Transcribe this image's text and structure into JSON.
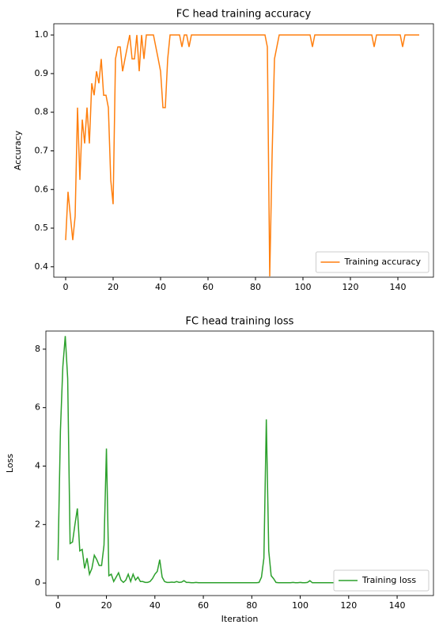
{
  "chart_data": [
    {
      "type": "line",
      "title": "FC head training accuracy",
      "ylabel": "Accuracy",
      "x": [
        0,
        1,
        2,
        3,
        4,
        5,
        6,
        7,
        8,
        9,
        10,
        11,
        12,
        13,
        14,
        15,
        16,
        17,
        18,
        19,
        20,
        21,
        22,
        23,
        24,
        25,
        26,
        27,
        28,
        29,
        30,
        31,
        32,
        33,
        34,
        35,
        36,
        37,
        38,
        39,
        40,
        41,
        42,
        43,
        44,
        45,
        46,
        47,
        48,
        49,
        50,
        51,
        52,
        53,
        54,
        55,
        56,
        57,
        58,
        59,
        60,
        61,
        62,
        63,
        64,
        65,
        66,
        67,
        68,
        69,
        70,
        71,
        72,
        73,
        74,
        75,
        76,
        77,
        78,
        79,
        80,
        81,
        82,
        83,
        84,
        85,
        86,
        87,
        88,
        89,
        90,
        91,
        92,
        93,
        94,
        95,
        96,
        97,
        98,
        99,
        100,
        101,
        102,
        103,
        104,
        105,
        106,
        107,
        108,
        109,
        110,
        111,
        112,
        113,
        114,
        115,
        116,
        117,
        118,
        119,
        120,
        121,
        122,
        123,
        124,
        125,
        126,
        127,
        128,
        129,
        130,
        131,
        132,
        133,
        134,
        135,
        136,
        137,
        138,
        139,
        140,
        141,
        142,
        143,
        144,
        145,
        146,
        147,
        148,
        149
      ],
      "series": [
        {
          "name": "Training accuracy",
          "color": "#ff7f0e",
          "values": [
            0.469,
            0.594,
            0.531,
            0.469,
            0.531,
            0.812,
            0.625,
            0.781,
            0.719,
            0.812,
            0.719,
            0.875,
            0.844,
            0.906,
            0.875,
            0.938,
            0.844,
            0.844,
            0.812,
            0.625,
            0.562,
            0.938,
            0.969,
            0.969,
            0.906,
            0.938,
            0.969,
            1,
            0.938,
            0.938,
            1,
            0.906,
            1,
            0.938,
            1,
            1,
            1,
            1,
            0.969,
            0.938,
            0.906,
            0.812,
            0.812,
            0.938,
            1,
            1,
            1,
            1,
            1,
            0.969,
            1,
            1,
            0.969,
            1,
            1,
            1,
            1,
            1,
            1,
            1,
            1,
            1,
            1,
            1,
            1,
            1,
            1,
            1,
            1,
            1,
            1,
            1,
            1,
            1,
            1,
            1,
            1,
            1,
            1,
            1,
            1,
            1,
            1,
            1,
            1,
            0.969,
            0.375,
            0.688,
            0.938,
            0.969,
            1,
            1,
            1,
            1,
            1,
            1,
            1,
            1,
            1,
            1,
            1,
            1,
            1,
            1,
            0.969,
            1,
            1,
            1,
            1,
            1,
            1,
            1,
            1,
            1,
            1,
            1,
            1,
            1,
            1,
            1,
            1,
            1,
            1,
            1,
            1,
            1,
            1,
            1,
            1,
            1,
            0.969,
            1,
            1,
            1,
            1,
            1,
            1,
            1,
            1,
            1,
            1,
            1,
            0.969,
            1,
            1,
            1,
            1,
            1,
            1,
            1
          ]
        }
      ],
      "xlim": [
        -5,
        155
      ],
      "xticks": [
        0,
        20,
        40,
        60,
        80,
        100,
        120,
        140
      ],
      "ylim": [
        0.373,
        1.029
      ],
      "yticks": [
        0.4,
        0.5,
        0.6,
        0.7,
        0.8,
        0.9,
        {
          "value": 1,
          "label": "1.0"
        }
      ],
      "legend": "lower right"
    },
    {
      "type": "line",
      "title": "FC head training loss",
      "xlabel": "Iteration",
      "ylabel": "Loss",
      "x": [
        0,
        1,
        2,
        3,
        4,
        5,
        6,
        7,
        8,
        9,
        10,
        11,
        12,
        13,
        14,
        15,
        16,
        17,
        18,
        19,
        20,
        21,
        22,
        23,
        24,
        25,
        26,
        27,
        28,
        29,
        30,
        31,
        32,
        33,
        34,
        35,
        36,
        37,
        38,
        39,
        40,
        41,
        42,
        43,
        44,
        45,
        46,
        47,
        48,
        49,
        50,
        51,
        52,
        53,
        54,
        55,
        56,
        57,
        58,
        59,
        60,
        61,
        62,
        63,
        64,
        65,
        66,
        67,
        68,
        69,
        70,
        71,
        72,
        73,
        74,
        75,
        76,
        77,
        78,
        79,
        80,
        81,
        82,
        83,
        84,
        85,
        86,
        87,
        88,
        89,
        90,
        91,
        92,
        93,
        94,
        95,
        96,
        97,
        98,
        99,
        100,
        101,
        102,
        103,
        104,
        105,
        106,
        107,
        108,
        109,
        110,
        111,
        112,
        113,
        114,
        115,
        116,
        117,
        118,
        119,
        120,
        121,
        122,
        123,
        124,
        125,
        126,
        127,
        128,
        129,
        130,
        131,
        132,
        133,
        134,
        135,
        136,
        137,
        138,
        139,
        140,
        141,
        142,
        143,
        144,
        145,
        146,
        147,
        148,
        149
      ],
      "series": [
        {
          "name": "Training loss",
          "color": "#2ca02c",
          "values": [
            0.78,
            5.2,
            7.4,
            8.45,
            7.0,
            1.35,
            1.4,
            2.0,
            2.55,
            1.1,
            1.15,
            0.5,
            0.85,
            0.3,
            0.5,
            0.95,
            0.8,
            0.6,
            0.6,
            1.3,
            4.6,
            0.25,
            0.3,
            0.05,
            0.2,
            0.35,
            0.1,
            0.02,
            0.1,
            0.3,
            0.05,
            0.3,
            0.1,
            0.2,
            0.05,
            0.05,
            0.02,
            0.02,
            0.05,
            0.15,
            0.3,
            0.4,
            0.8,
            0.2,
            0.05,
            0.02,
            0.02,
            0.03,
            0.02,
            0.05,
            0.02,
            0.03,
            0.08,
            0.02,
            0.02,
            0.01,
            0.01,
            0.02,
            0.01,
            0.01,
            0.01,
            0.01,
            0.01,
            0.01,
            0.01,
            0.01,
            0.01,
            0.01,
            0.01,
            0.01,
            0.01,
            0.01,
            0.01,
            0.01,
            0.01,
            0.01,
            0.01,
            0.01,
            0.01,
            0.01,
            0.01,
            0.01,
            0.01,
            0.02,
            0.2,
            0.85,
            5.6,
            1.1,
            0.25,
            0.15,
            0.02,
            0.01,
            0.01,
            0.01,
            0.01,
            0.01,
            0.01,
            0.02,
            0.01,
            0.01,
            0.02,
            0.01,
            0.01,
            0.02,
            0.08,
            0.01,
            0.01,
            0.01,
            0.01,
            0.01,
            0.01,
            0.01,
            0.01,
            0.01,
            0.01,
            0.01,
            0.01,
            0.01,
            0.01,
            0.01,
            0.01,
            0.01,
            0.01,
            0.01,
            0.01,
            0.01,
            0.01,
            0.01,
            0.01,
            0.01,
            0.01,
            0.01,
            0.01,
            0.01,
            0.01,
            0.01,
            0.01,
            0.01,
            0.01,
            0.01,
            0.01,
            0.01,
            0.01,
            0.01,
            0.01,
            0.01,
            0.01,
            0.01,
            0.01,
            0.01
          ]
        }
      ],
      "xlim": [
        -5,
        155
      ],
      "xticks": [
        0,
        20,
        40,
        60,
        80,
        100,
        120,
        140
      ],
      "ylim": [
        -0.43,
        8.62
      ],
      "yticks": [
        0,
        2,
        4,
        6,
        8
      ],
      "legend": "lower right"
    }
  ]
}
